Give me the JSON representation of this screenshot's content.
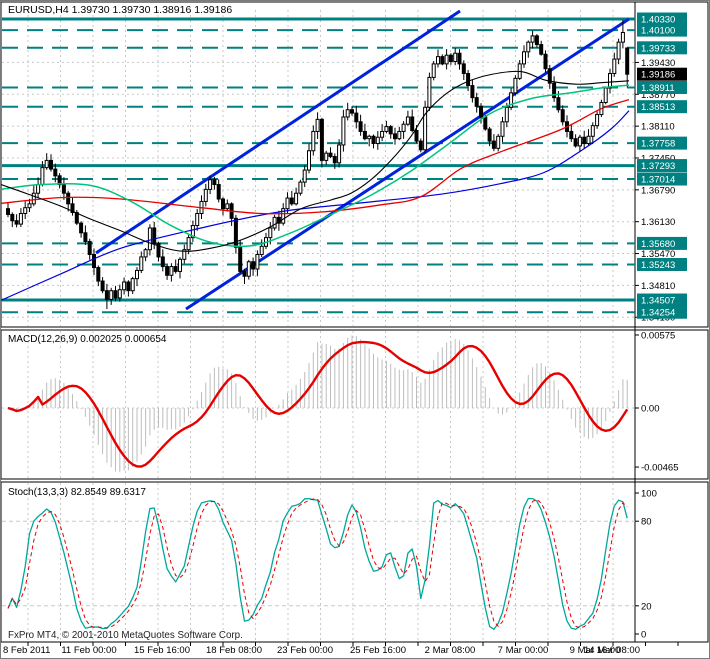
{
  "window": {
    "title_line": "EURUSD,H4  1.39730 1.39730 1.38916 1.39186",
    "symbol": "EURUSD",
    "timeframe": "H4"
  },
  "footer": {
    "copyright": "FxPro MT4, © 2001-2010 MetaQuotes Software Corp."
  },
  "indicators": {
    "macd": {
      "label": "MACD(12,26,9) 0.002025 0.000654",
      "name": "MACD(12,26,9)",
      "value_main": "0.002025",
      "value_signal": "0.000654",
      "scale": [
        "0.00575",
        "0.00",
        "-0.00465"
      ]
    },
    "stoch": {
      "label": "Stoch(13,3,3) 82.8549 89.6317",
      "name": "Stoch(13,3,3)",
      "value_main": "82.8549",
      "value_signal": "89.6317",
      "scale": [
        "100",
        "80",
        "20",
        "0"
      ]
    }
  },
  "price_axis": {
    "current_price": "1.39186",
    "labels": [
      {
        "v": "1.40330",
        "t": "solid"
      },
      {
        "v": "1.40100",
        "t": "dashed"
      },
      {
        "v": "1.39733",
        "t": "dashed"
      },
      {
        "v": "1.39430",
        "t": "grid"
      },
      {
        "v": "1.39186",
        "t": "current"
      },
      {
        "v": "1.38911",
        "t": "dashed"
      },
      {
        "v": "1.38770",
        "t": "grid"
      },
      {
        "v": "1.38513",
        "t": "dashed"
      },
      {
        "v": "1.38110",
        "t": "grid"
      },
      {
        "v": "1.37758",
        "t": "dashed"
      },
      {
        "v": "1.37450",
        "t": "grid"
      },
      {
        "v": "1.37293",
        "t": "solid"
      },
      {
        "v": "1.37014",
        "t": "dashed"
      },
      {
        "v": "1.36790",
        "t": "grid"
      },
      {
        "v": "1.36130",
        "t": "grid"
      },
      {
        "v": "1.35680",
        "t": "dashed"
      },
      {
        "v": "1.35470",
        "t": "grid"
      },
      {
        "v": "1.35243",
        "t": "dashed"
      },
      {
        "v": "1.34810",
        "t": "grid"
      },
      {
        "v": "1.34507",
        "t": "solid"
      },
      {
        "v": "1.34254",
        "t": "dashed"
      },
      {
        "v": "1.34150",
        "t": "grid"
      }
    ]
  },
  "time_axis": {
    "labels": [
      "8 Feb 2011",
      "11 Feb 00:00",
      "15 Feb 16:00",
      "18 Feb 08:00",
      "23 Feb 00:00",
      "25 Feb 16:00",
      "2 Mar 08:00",
      "7 Mar 00:00",
      "9 Mar 16:00",
      "14 Mar 08:00"
    ]
  },
  "colors": {
    "level_teal": "#008080",
    "grid_gray": "#c8c8c8",
    "candle_outline": "#000000",
    "candle_up_fill": "#ffffff",
    "candle_down_fill": "#000000",
    "ma_black": "#000000",
    "ma_green": "#00c47e",
    "ma_red": "#e60000",
    "ma_blue": "#0000e0",
    "channel_blue": "#0022dd",
    "macd_hist": "#bdbdbd",
    "macd_signal": "#e60000",
    "stoch_main": "#00a79b",
    "stoch_signal": "#e60000",
    "label_box_text": "#ffffff",
    "current_box_bg": "#000000",
    "axis_text": "#000000"
  },
  "chart_data": [
    {
      "type": "candlestick",
      "title": "EURUSD,H4",
      "timeframe": "H4",
      "ylim": [
        1.3395,
        1.405
      ],
      "x_tick_labels": [
        "8 Feb 2011",
        "11 Feb 00:00",
        "15 Feb 16:00",
        "18 Feb 08:00",
        "23 Feb 00:00",
        "25 Feb 16:00",
        "2 Mar 08:00",
        "7 Mar 00:00",
        "9 Mar 16:00",
        "14 Mar 08:00"
      ],
      "current_bar_ohlc": {
        "open": 1.3973,
        "high": 1.3973,
        "low": 1.38916,
        "close": 1.39186
      },
      "close_series": [
        1.3628,
        1.3615,
        1.3608,
        1.363,
        1.3642,
        1.365,
        1.3672,
        1.369,
        1.3725,
        1.374,
        1.3722,
        1.3708,
        1.369,
        1.3672,
        1.365,
        1.3632,
        1.361,
        1.359,
        1.3572,
        1.3545,
        1.3518,
        1.349,
        1.347,
        1.3452,
        1.347,
        1.3455,
        1.3472,
        1.3488,
        1.347,
        1.3495,
        1.3512,
        1.354,
        1.3555,
        1.36,
        1.3568,
        1.354,
        1.352,
        1.3502,
        1.352,
        1.351,
        1.3535,
        1.3555,
        1.358,
        1.3605,
        1.363,
        1.3655,
        1.368,
        1.37,
        1.369,
        1.366,
        1.364,
        1.365,
        1.362,
        1.356,
        1.351,
        1.35,
        1.353,
        1.3515,
        1.3545,
        1.3562,
        1.358,
        1.36,
        1.3622,
        1.361,
        1.364,
        1.3662,
        1.365,
        1.3672,
        1.3695,
        1.372,
        1.376,
        1.38,
        1.3825,
        1.374,
        1.3755,
        1.3748,
        1.3735,
        1.3772,
        1.383,
        1.3845,
        1.3838,
        1.382,
        1.38,
        1.3785,
        1.379,
        1.3775,
        1.3788,
        1.38,
        1.381,
        1.3795,
        1.3785,
        1.38,
        1.3815,
        1.383,
        1.3802,
        1.378,
        1.3762,
        1.385,
        1.3912,
        1.394,
        1.3955,
        1.394,
        1.3958,
        1.3945,
        1.3962,
        1.394,
        1.392,
        1.3895,
        1.387,
        1.3852,
        1.383,
        1.3805,
        1.378,
        1.3765,
        1.379,
        1.382,
        1.385,
        1.388,
        1.391,
        1.394,
        1.3965,
        1.3985,
        1.3998,
        1.398,
        1.396,
        1.393,
        1.39,
        1.387,
        1.3845,
        1.382,
        1.38,
        1.3785,
        1.377,
        1.3788,
        1.3775,
        1.379,
        1.3812,
        1.3835,
        1.386,
        1.389,
        1.392,
        1.395,
        1.3985,
        1.4005,
        1.39186
      ],
      "levels": {
        "solid": [
          1.4033,
          1.37293,
          1.34507
        ],
        "dashed": [
          1.401,
          1.39733,
          1.38911,
          1.38513,
          1.37758,
          1.37014,
          1.3568,
          1.35243,
          1.34254
        ],
        "grid": [
          1.3943,
          1.3877,
          1.3811,
          1.3745,
          1.3679,
          1.3613,
          1.3547,
          1.3481,
          1.3415
        ]
      },
      "moving_averages": {
        "black": [
          [
            0,
            1.369
          ],
          [
            30,
            1.3668
          ],
          [
            60,
            1.3645
          ],
          [
            90,
            1.3618
          ],
          [
            120,
            1.3594
          ],
          [
            150,
            1.3568
          ],
          [
            180,
            1.3552
          ],
          [
            210,
            1.3558
          ],
          [
            240,
            1.3575
          ],
          [
            270,
            1.3603
          ],
          [
            300,
            1.364
          ],
          [
            330,
            1.3658
          ],
          [
            350,
            1.3672
          ],
          [
            370,
            1.37
          ],
          [
            390,
            1.374
          ],
          [
            410,
            1.379
          ],
          [
            425,
            1.3838
          ],
          [
            445,
            1.3878
          ],
          [
            465,
            1.3902
          ],
          [
            490,
            1.3918
          ],
          [
            520,
            1.3924
          ],
          [
            545,
            1.3906
          ],
          [
            575,
            1.3898
          ],
          [
            600,
            1.3901
          ],
          [
            628,
            1.3905
          ]
        ],
        "green": [
          [
            0,
            1.368
          ],
          [
            40,
            1.369
          ],
          [
            90,
            1.3688
          ],
          [
            130,
            1.3655
          ],
          [
            170,
            1.3605
          ],
          [
            210,
            1.357
          ],
          [
            250,
            1.3563
          ],
          [
            290,
            1.359
          ],
          [
            330,
            1.3628
          ],
          [
            370,
            1.3668
          ],
          [
            410,
            1.3718
          ],
          [
            450,
            1.3778
          ],
          [
            490,
            1.3838
          ],
          [
            530,
            1.3868
          ],
          [
            570,
            1.388
          ],
          [
            600,
            1.389
          ],
          [
            628,
            1.3896
          ]
        ],
        "red": [
          [
            0,
            1.3651
          ],
          [
            60,
            1.3663
          ],
          [
            120,
            1.366
          ],
          [
            200,
            1.3642
          ],
          [
            260,
            1.363
          ],
          [
            320,
            1.3633
          ],
          [
            380,
            1.3648
          ],
          [
            420,
            1.3665
          ],
          [
            460,
            1.3723
          ],
          [
            500,
            1.3758
          ],
          [
            560,
            1.3804
          ],
          [
            600,
            1.3847
          ],
          [
            628,
            1.3866
          ]
        ],
        "blue": [
          [
            0,
            1.345
          ],
          [
            60,
            1.3505
          ],
          [
            120,
            1.3558
          ],
          [
            200,
            1.36
          ],
          [
            280,
            1.3634
          ],
          [
            360,
            1.3652
          ],
          [
            440,
            1.367
          ],
          [
            500,
            1.3692
          ],
          [
            543,
            1.3715
          ],
          [
            580,
            1.376
          ],
          [
            610,
            1.3805
          ],
          [
            628,
            1.3843
          ]
        ]
      },
      "trend_channel": {
        "upper": [
          [
            95,
            1.35481
          ],
          [
            459,
            1.40496
          ]
        ],
        "lower": [
          [
            185,
            1.34321
          ],
          [
            628,
            1.4033
          ]
        ]
      }
    },
    {
      "type": "bar+line",
      "name": "MACD(12,26,9)",
      "params": {
        "fast": 12,
        "slow": 26,
        "signal": 9
      },
      "displayed_values": {
        "macd": 0.002025,
        "signal": 0.000654
      },
      "ylim": [
        -0.00465,
        0.00575
      ],
      "y_tick_labels": [
        "0.00575",
        "0.00",
        "-0.00465"
      ],
      "derived_from": "chart_data[0].close_series"
    },
    {
      "type": "line",
      "name": "Stoch(13,3,3)",
      "params": {
        "k": 13,
        "d": 3,
        "slowing": 3
      },
      "displayed_values": {
        "main": 82.8549,
        "signal": 89.6317
      },
      "ylim": [
        0,
        100
      ],
      "grid_levels": [
        80,
        20
      ],
      "y_tick_labels": [
        "100",
        "80",
        "20",
        "0"
      ],
      "derived_from": "chart_data[0].close_series"
    }
  ]
}
